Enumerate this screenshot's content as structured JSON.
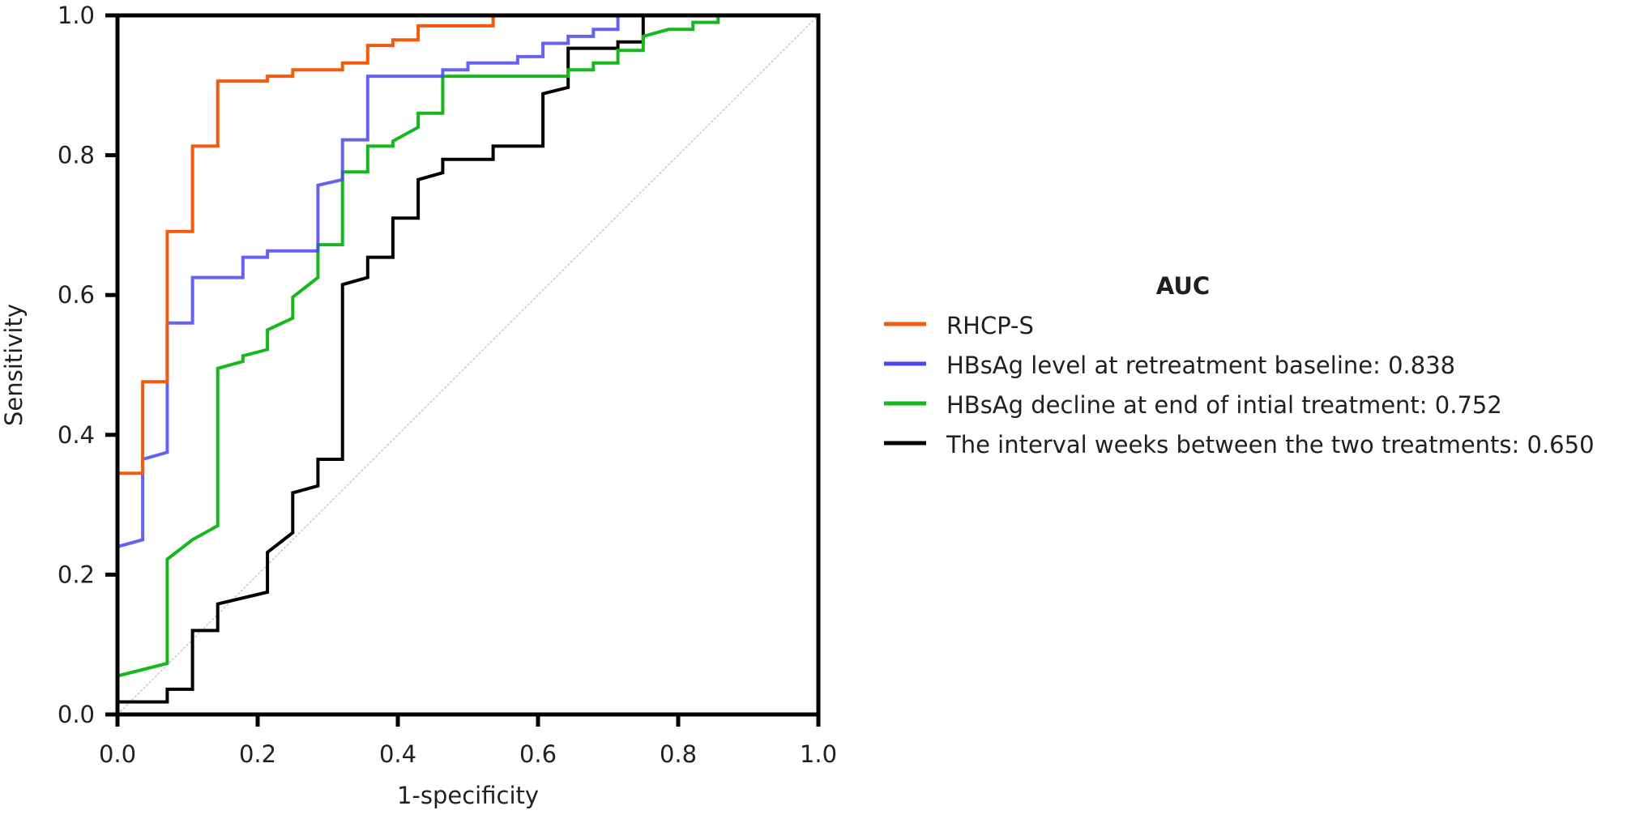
{
  "chart_data": {
    "type": "line",
    "title": "",
    "xlabel": "1-specificity",
    "ylabel": "Sensitivity",
    "xlim": [
      0,
      1
    ],
    "ylim": [
      0,
      1
    ],
    "xticks": [
      "0.0",
      "0.2",
      "0.4",
      "0.6",
      "0.8",
      "1.0"
    ],
    "yticks": [
      "0.0",
      "0.2",
      "0.4",
      "0.6",
      "0.8",
      "1.0"
    ],
    "grid": false,
    "reference_line": {
      "from": [
        0,
        0
      ],
      "to": [
        1,
        1
      ],
      "color": "#c8c8c8",
      "style": "dotted"
    },
    "legend": {
      "title": "AUC",
      "placement": "right"
    },
    "series": [
      {
        "name": "RHCP-S",
        "color": "#f15a0f",
        "x": [
          0,
          0,
          0.036,
          0.036,
          0.071,
          0.071,
          0.107,
          0.107,
          0.143,
          0.143,
          0.214,
          0.214,
          0.25,
          0.25,
          0.321,
          0.321,
          0.357,
          0.357,
          0.393,
          0.393,
          0.429,
          0.429,
          0.536,
          0.536,
          1
        ],
        "y": [
          0,
          0.345,
          0.345,
          0.476,
          0.476,
          0.691,
          0.691,
          0.813,
          0.813,
          0.906,
          0.906,
          0.913,
          0.913,
          0.922,
          0.922,
          0.932,
          0.932,
          0.957,
          0.957,
          0.965,
          0.965,
          0.985,
          0.985,
          1,
          1
        ]
      },
      {
        "name": "HBsAg level at retreatment baseline: 0.838",
        "color": "#4a46f0",
        "x": [
          0,
          0,
          0.036,
          0.036,
          0.071,
          0.071,
          0.107,
          0.107,
          0.179,
          0.179,
          0.214,
          0.214,
          0.286,
          0.286,
          0.321,
          0.321,
          0.357,
          0.357,
          0.464,
          0.464,
          0.5,
          0.5,
          0.571,
          0.571,
          0.607,
          0.607,
          0.643,
          0.643,
          0.679,
          0.679,
          0.714,
          0.714,
          1
        ],
        "y": [
          0,
          0.24,
          0.25,
          0.365,
          0.375,
          0.56,
          0.56,
          0.625,
          0.625,
          0.654,
          0.654,
          0.663,
          0.663,
          0.757,
          0.765,
          0.822,
          0.822,
          0.913,
          0.913,
          0.922,
          0.922,
          0.932,
          0.932,
          0.941,
          0.941,
          0.96,
          0.96,
          0.97,
          0.97,
          0.98,
          0.98,
          1,
          1
        ]
      },
      {
        "name": "HBsAg decline at end of intial treatment: 0.752",
        "color": "#16b81e",
        "x": [
          0,
          0.071,
          0.071,
          0.107,
          0.143,
          0.143,
          0.179,
          0.179,
          0.214,
          0.214,
          0.25,
          0.25,
          0.286,
          0.286,
          0.321,
          0.321,
          0.357,
          0.357,
          0.393,
          0.393,
          0.429,
          0.429,
          0.464,
          0.464,
          0.643,
          0.643,
          0.679,
          0.679,
          0.714,
          0.714,
          0.75,
          0.75,
          0.786,
          0.821,
          0.821,
          0.857,
          0.857,
          1
        ],
        "y": [
          0.055,
          0.073,
          0.222,
          0.25,
          0.27,
          0.495,
          0.505,
          0.513,
          0.522,
          0.55,
          0.567,
          0.597,
          0.625,
          0.672,
          0.672,
          0.776,
          0.776,
          0.813,
          0.813,
          0.82,
          0.84,
          0.86,
          0.86,
          0.913,
          0.913,
          0.922,
          0.922,
          0.932,
          0.932,
          0.95,
          0.95,
          0.97,
          0.98,
          0.98,
          0.99,
          0.99,
          1,
          1
        ]
      },
      {
        "name": "The interval weeks between the two treatments: 0.650",
        "color": "#000000",
        "x": [
          0,
          0,
          0.071,
          0.071,
          0.107,
          0.107,
          0.143,
          0.143,
          0.214,
          0.214,
          0.25,
          0.25,
          0.286,
          0.286,
          0.321,
          0.321,
          0.357,
          0.357,
          0.393,
          0.393,
          0.429,
          0.429,
          0.464,
          0.464,
          0.536,
          0.536,
          0.607,
          0.607,
          0.643,
          0.643,
          0.714,
          0.714,
          0.75,
          0.75,
          1
        ],
        "y": [
          0,
          0.018,
          0.018,
          0.036,
          0.036,
          0.12,
          0.12,
          0.158,
          0.175,
          0.232,
          0.26,
          0.317,
          0.327,
          0.365,
          0.365,
          0.615,
          0.625,
          0.654,
          0.654,
          0.71,
          0.71,
          0.765,
          0.775,
          0.794,
          0.794,
          0.813,
          0.813,
          0.888,
          0.897,
          0.953,
          0.953,
          0.962,
          0.962,
          1,
          1
        ]
      }
    ]
  }
}
